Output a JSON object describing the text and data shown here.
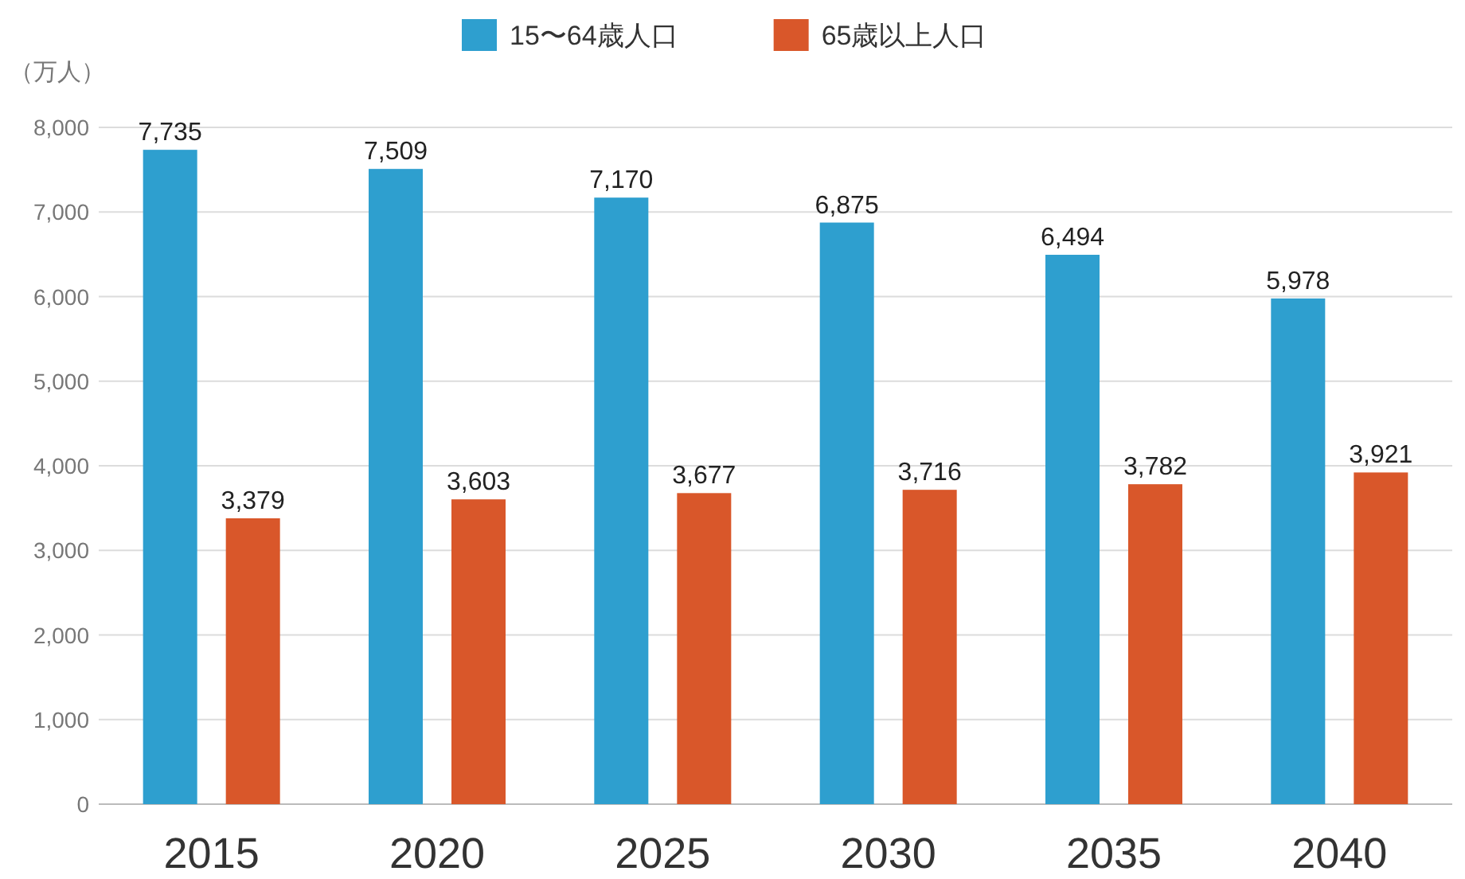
{
  "chart_data": {
    "type": "bar",
    "ylabel": "（万人）",
    "categories": [
      "2015",
      "2020",
      "2025",
      "2030",
      "2035",
      "2040"
    ],
    "series": [
      {
        "name": "15〜64歳人口",
        "color": "#2e9fcf",
        "values": [
          7735,
          7509,
          7170,
          6875,
          6494,
          5978
        ],
        "value_labels": [
          "7,735",
          "7,509",
          "7,170",
          "6,875",
          "6,494",
          "5,978"
        ]
      },
      {
        "name": "65歳以上人口",
        "color": "#d9572a",
        "values": [
          3379,
          3603,
          3677,
          3716,
          3782,
          3921
        ],
        "value_labels": [
          "3,379",
          "3,603",
          "3,677",
          "3,716",
          "3,782",
          "3,921"
        ]
      }
    ],
    "ylim": [
      0,
      8000
    ],
    "yticks": [
      {
        "value": 0,
        "label": "0"
      },
      {
        "value": 1000,
        "label": "1,000"
      },
      {
        "value": 2000,
        "label": "2,000"
      },
      {
        "value": 3000,
        "label": "3,000"
      },
      {
        "value": 4000,
        "label": "4,000"
      },
      {
        "value": 5000,
        "label": "5,000"
      },
      {
        "value": 6000,
        "label": "6,000"
      },
      {
        "value": 7000,
        "label": "7,000"
      },
      {
        "value": 8000,
        "label": "8,000"
      }
    ],
    "grid": "y",
    "legend": "top"
  }
}
